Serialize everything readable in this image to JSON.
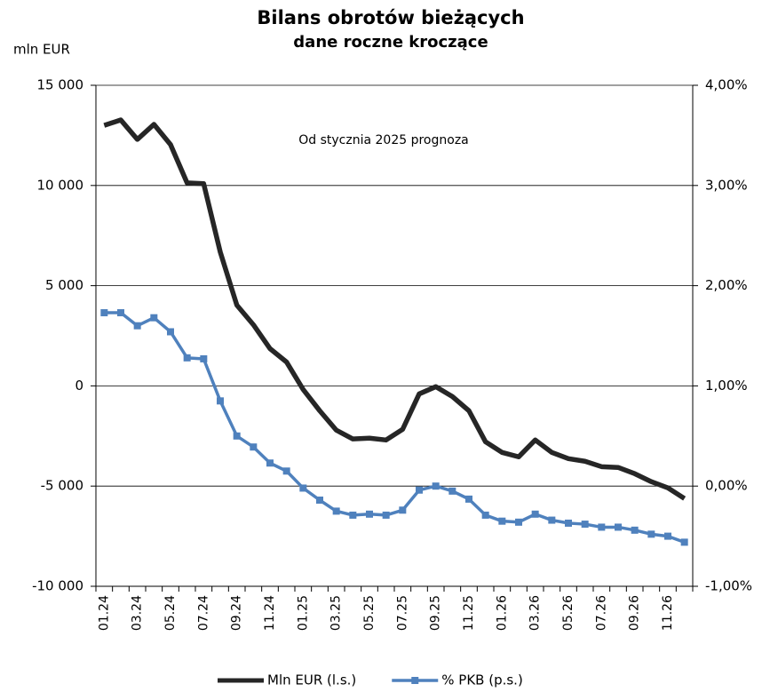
{
  "chart_data": {
    "type": "line",
    "title": "Bilans obrotów bieżących",
    "subtitle": "dane roczne kroczące",
    "y_label": "mln EUR",
    "annotation": "Od stycznia 2025 prognoza",
    "categories": [
      "01.24",
      null,
      "03.24",
      null,
      "05.24",
      null,
      "07.24",
      null,
      "09.24",
      null,
      "11.24",
      null,
      "01.25",
      null,
      "03.25",
      null,
      "05.25",
      null,
      "07.25",
      null,
      "09.25",
      null,
      "11.25",
      null,
      "01.26",
      null,
      "03.26",
      null,
      "05.26",
      null,
      "07.26",
      null,
      "09.26",
      null,
      "11.26",
      null
    ],
    "series": [
      {
        "name": "Mln EUR (l.s.)",
        "color": "#262626",
        "axis": "y",
        "marker": "none",
        "values": [
          13000,
          13270,
          12300,
          13050,
          12040,
          10130,
          10090,
          6680,
          4030,
          3050,
          1860,
          1190,
          -180,
          -1240,
          -2210,
          -2650,
          -2610,
          -2700,
          -2170,
          -400,
          -40,
          -530,
          -1240,
          -2790,
          -3320,
          -3540,
          -2700,
          -3320,
          -3630,
          -3760,
          -4030,
          -4070,
          -4380,
          -4780,
          -5090,
          -5620
        ]
      },
      {
        "name": "% PKB (p.s.)",
        "color": "#4f81bd",
        "axis": "y2",
        "marker": "square",
        "values": [
          1.73,
          1.73,
          1.6,
          1.68,
          1.54,
          1.28,
          1.27,
          0.85,
          0.5,
          0.39,
          0.23,
          0.15,
          -0.02,
          -0.14,
          -0.25,
          -0.29,
          -0.28,
          -0.29,
          -0.24,
          -0.04,
          0.0,
          -0.05,
          -0.13,
          -0.29,
          -0.35,
          -0.36,
          -0.28,
          -0.34,
          -0.37,
          -0.38,
          -0.41,
          -0.41,
          -0.44,
          -0.48,
          -0.5,
          -0.56
        ]
      }
    ],
    "ylim": [
      -10000,
      15000
    ],
    "yticks": [
      {
        "value": -10000,
        "label": "-10 000"
      },
      {
        "value": -5000,
        "label": "-5 000"
      },
      0,
      {
        "value": 5000,
        "label": "5 000"
      },
      {
        "value": 10000,
        "label": "10 000"
      },
      {
        "value": 15000,
        "label": "15 000"
      }
    ],
    "y2lim": [
      -1,
      4
    ],
    "y2ticks": [
      {
        "value": -1,
        "label": "-1,00%"
      },
      {
        "value": 0,
        "label": "0,00%"
      },
      {
        "value": 1,
        "label": "1,00%"
      },
      {
        "value": 2,
        "label": "2,00%"
      },
      {
        "value": 3,
        "label": "3,00%"
      },
      {
        "value": 4,
        "label": "4,00%"
      }
    ],
    "grid": true,
    "legend": "bottom"
  }
}
